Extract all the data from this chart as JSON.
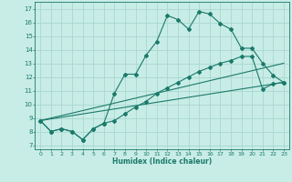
{
  "xlabel": "Humidex (Indice chaleur)",
  "xlim": [
    -0.5,
    23.5
  ],
  "ylim": [
    6.7,
    17.5
  ],
  "xticks": [
    0,
    1,
    2,
    3,
    4,
    5,
    6,
    7,
    8,
    9,
    10,
    11,
    12,
    13,
    14,
    15,
    16,
    17,
    18,
    19,
    20,
    21,
    22,
    23
  ],
  "yticks": [
    7,
    8,
    9,
    10,
    11,
    12,
    13,
    14,
    15,
    16,
    17
  ],
  "background_color": "#c8ece6",
  "grid_color": "#a8d8d0",
  "line_color": "#1a7a6a",
  "line1_x": [
    0,
    1,
    2,
    3,
    4,
    5,
    6,
    7,
    8,
    9,
    10,
    11,
    12,
    13,
    14,
    15,
    16,
    17,
    18,
    19,
    20,
    21,
    22,
    23
  ],
  "line1_y": [
    8.8,
    8.0,
    8.2,
    8.0,
    7.4,
    8.2,
    8.6,
    10.8,
    12.2,
    12.2,
    13.6,
    14.6,
    16.5,
    16.2,
    15.5,
    16.8,
    16.6,
    15.9,
    15.5,
    14.1,
    14.1,
    13.0,
    12.1,
    11.6
  ],
  "line2_x": [
    0,
    1,
    2,
    3,
    4,
    5,
    6,
    7,
    8,
    9,
    10,
    11,
    12,
    13,
    14,
    15,
    16,
    17,
    18,
    19,
    20,
    21,
    22,
    23
  ],
  "line2_y": [
    8.8,
    8.0,
    8.2,
    8.0,
    7.4,
    8.2,
    8.6,
    8.8,
    9.3,
    9.8,
    10.2,
    10.8,
    11.2,
    11.6,
    12.0,
    12.4,
    12.7,
    13.0,
    13.2,
    13.5,
    13.5,
    11.1,
    11.5,
    11.6
  ],
  "line3_x": [
    0,
    23
  ],
  "line3_y": [
    8.8,
    13.0
  ],
  "line4_x": [
    0,
    23
  ],
  "line4_y": [
    8.8,
    11.6
  ]
}
